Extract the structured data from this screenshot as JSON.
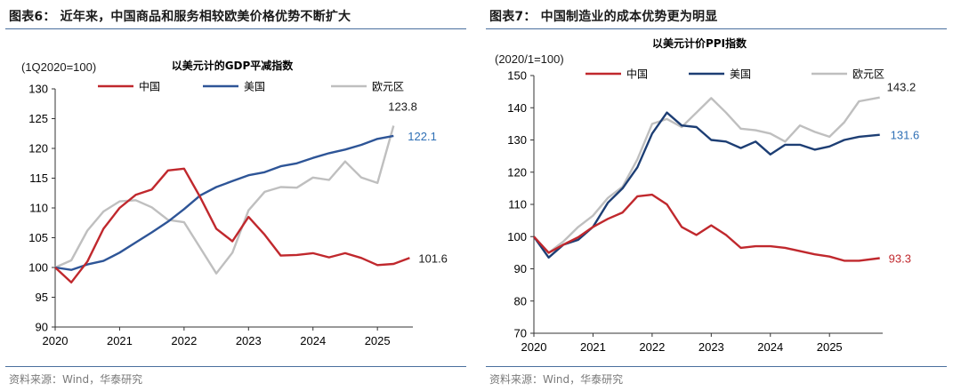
{
  "left": {
    "figure_title": "图表6：  近年来，中国商品和服务相较欧美价格优势不断扩大",
    "source": "资料来源：Wind，华泰研究"
  },
  "right": {
    "figure_title": "图表7：  中国制造业的成本优势更为明显",
    "source": "资料来源：Wind，华泰研究"
  },
  "chart_data": [
    {
      "type": "line",
      "title": "以美元计的GDP平减指数",
      "unit_label": "(1Q2020=100)",
      "ylim": [
        90,
        130
      ],
      "yticks": [
        90,
        95,
        100,
        105,
        110,
        115,
        120,
        125,
        130
      ],
      "xlim": [
        2020,
        2025.55
      ],
      "xticks": [
        2020,
        2021,
        2022,
        2023,
        2024,
        2025
      ],
      "grid": false,
      "legend_position": "top",
      "series": [
        {
          "name": "中国",
          "color": "#c0282d",
          "x": [
            2020.0,
            2020.25,
            2020.5,
            2020.75,
            2021.0,
            2021.25,
            2021.5,
            2021.75,
            2022.0,
            2022.25,
            2022.5,
            2022.75,
            2023.0,
            2023.25,
            2023.5,
            2023.75,
            2024.0,
            2024.25,
            2024.5,
            2024.75,
            2025.0,
            2025.25,
            2025.5
          ],
          "y": [
            100.0,
            97.5,
            101.0,
            106.5,
            110.0,
            112.2,
            113.1,
            116.3,
            116.6,
            111.8,
            106.5,
            104.4,
            108.5,
            105.5,
            102.0,
            102.1,
            102.4,
            101.7,
            102.4,
            101.6,
            100.4,
            100.6,
            101.6
          ],
          "end_label": "101.6"
        },
        {
          "name": "美国",
          "color": "#2e5597",
          "x": [
            2020.0,
            2020.25,
            2020.5,
            2020.75,
            2021.0,
            2021.25,
            2021.5,
            2021.75,
            2022.0,
            2022.25,
            2022.5,
            2022.75,
            2023.0,
            2023.25,
            2023.5,
            2023.75,
            2024.0,
            2024.25,
            2024.5,
            2024.75,
            2025.0,
            2025.25
          ],
          "y": [
            100.0,
            99.6,
            100.5,
            101.1,
            102.5,
            104.2,
            105.9,
            107.7,
            109.8,
            112.1,
            113.5,
            114.5,
            115.5,
            116.0,
            117.0,
            117.5,
            118.4,
            119.2,
            119.8,
            120.6,
            121.6,
            122.1
          ],
          "end_label": "122.1"
        },
        {
          "name": "欧元区",
          "color": "#bfbfbf",
          "x": [
            2020.0,
            2020.25,
            2020.5,
            2020.75,
            2021.0,
            2021.25,
            2021.5,
            2021.75,
            2022.0,
            2022.25,
            2022.5,
            2022.75,
            2023.0,
            2023.25,
            2023.5,
            2023.75,
            2024.0,
            2024.25,
            2024.5,
            2024.75,
            2025.0,
            2025.25
          ],
          "y": [
            100.0,
            101.2,
            106.2,
            109.4,
            111.1,
            111.3,
            110.1,
            108.0,
            107.6,
            103.3,
            99.0,
            102.5,
            109.6,
            112.7,
            113.5,
            113.4,
            115.1,
            114.7,
            117.8,
            115.1,
            114.2,
            123.8
          ],
          "end_label": "123.8"
        }
      ]
    },
    {
      "type": "line",
      "title": "以美元计价PPI指数",
      "unit_label": "(2020/1=100)",
      "ylim": [
        70,
        150
      ],
      "yticks": [
        70,
        80,
        90,
        100,
        110,
        120,
        130,
        140,
        150
      ],
      "xlim": [
        2020,
        2025.9
      ],
      "xticks": [
        2020,
        2021,
        2022,
        2023,
        2024,
        2025
      ],
      "grid": false,
      "legend_position": "top",
      "series": [
        {
          "name": "中国",
          "color": "#c0282d",
          "x": [
            2020.0,
            2020.25,
            2020.5,
            2020.75,
            2021.0,
            2021.25,
            2021.5,
            2021.75,
            2022.0,
            2022.25,
            2022.5,
            2022.75,
            2023.0,
            2023.25,
            2023.5,
            2023.75,
            2024.0,
            2024.25,
            2024.5,
            2024.75,
            2025.0,
            2025.25,
            2025.5,
            2025.85
          ],
          "y": [
            100.0,
            95.0,
            97.5,
            99.8,
            103.0,
            105.5,
            107.5,
            112.5,
            113.0,
            110.0,
            103.0,
            100.5,
            103.5,
            100.5,
            96.5,
            97.0,
            97.0,
            96.5,
            95.5,
            94.5,
            93.8,
            92.5,
            92.5,
            93.3
          ],
          "end_label": "93.3"
        },
        {
          "name": "美国",
          "color": "#1d3e74",
          "x": [
            2020.0,
            2020.25,
            2020.5,
            2020.75,
            2021.0,
            2021.25,
            2021.5,
            2021.75,
            2022.0,
            2022.25,
            2022.5,
            2022.75,
            2023.0,
            2023.25,
            2023.5,
            2023.75,
            2024.0,
            2024.25,
            2024.5,
            2024.75,
            2025.0,
            2025.25,
            2025.5,
            2025.85
          ],
          "y": [
            100.0,
            93.5,
            97.5,
            99.0,
            103.0,
            110.5,
            115.0,
            121.5,
            132.0,
            138.5,
            134.5,
            134.0,
            130.0,
            129.5,
            127.5,
            129.5,
            125.5,
            128.5,
            128.5,
            127.0,
            128.0,
            130.0,
            131.0,
            131.6
          ],
          "end_label": "131.6"
        },
        {
          "name": "欧元区",
          "color": "#bfbfbf",
          "x": [
            2020.0,
            2020.25,
            2020.5,
            2020.75,
            2021.0,
            2021.25,
            2021.5,
            2021.75,
            2022.0,
            2022.25,
            2022.5,
            2022.75,
            2023.0,
            2023.25,
            2023.5,
            2023.75,
            2024.0,
            2024.25,
            2024.5,
            2024.75,
            2025.0,
            2025.25,
            2025.5,
            2025.85
          ],
          "y": [
            100.0,
            95.0,
            98.5,
            103.0,
            106.5,
            112.0,
            115.5,
            124.0,
            135.0,
            136.5,
            134.0,
            138.5,
            143.0,
            138.5,
            133.5,
            133.0,
            132.0,
            129.5,
            134.5,
            132.5,
            131.0,
            135.5,
            142.0,
            143.2
          ],
          "end_label": "143.2"
        }
      ]
    }
  ]
}
